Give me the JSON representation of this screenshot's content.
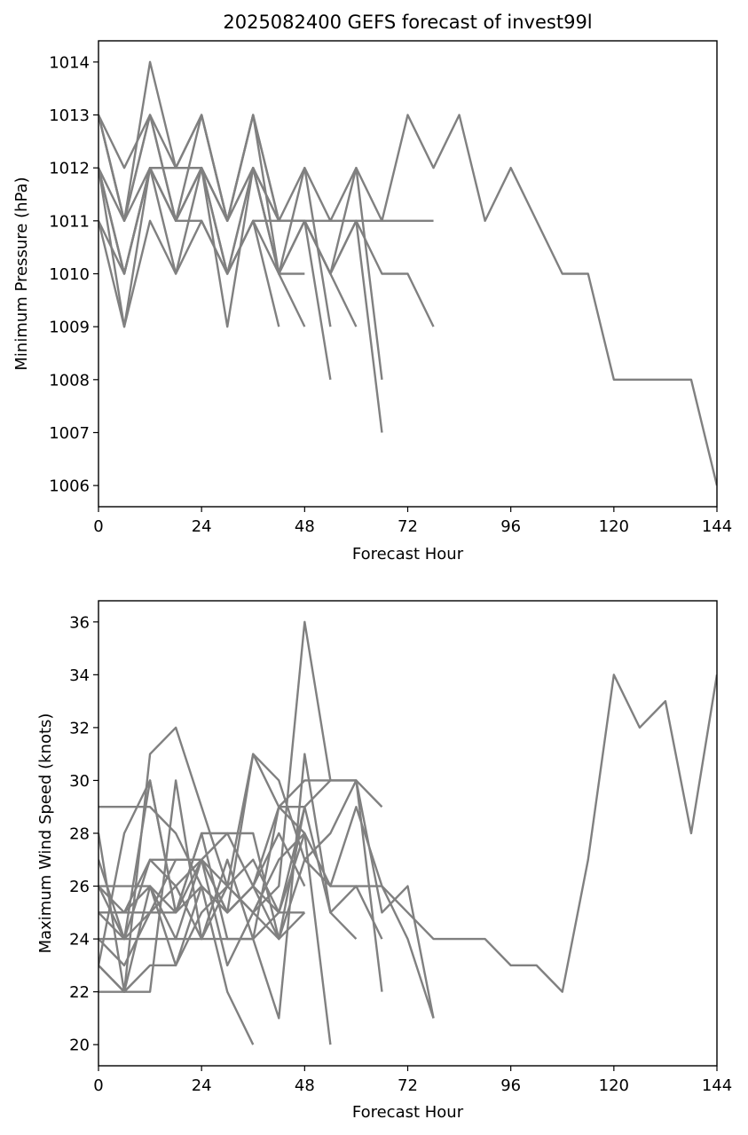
{
  "title": "2025082400 GEFS forecast of invest99l",
  "chart_data": [
    {
      "type": "line",
      "name": "pressure",
      "title": "2025082400 GEFS forecast of invest99l",
      "xlabel": "Forecast Hour",
      "ylabel": "Minimum Pressure (hPa)",
      "xlim": [
        0,
        144
      ],
      "ylim": [
        1005.6,
        1014.4
      ],
      "xticks": [
        0,
        24,
        48,
        72,
        96,
        120,
        144
      ],
      "yticks": [
        1006,
        1007,
        1008,
        1009,
        1010,
        1011,
        1012,
        1013,
        1014
      ],
      "grid": false,
      "color": "#808080",
      "series": [
        {
          "x": [
            0,
            6,
            12,
            18,
            24,
            30,
            36,
            42,
            48,
            54,
            60,
            66,
            72,
            78,
            84,
            90,
            96,
            102,
            108,
            114,
            120,
            126,
            132,
            138,
            144
          ],
          "y": [
            1013,
            1012,
            1013,
            1012,
            1013,
            1011,
            1013,
            1011,
            1012,
            1011,
            1012,
            1011,
            1013,
            1012,
            1013,
            1011,
            1012,
            1011,
            1010,
            1010,
            1008,
            1008,
            1008,
            1008,
            1006
          ]
        },
        {
          "x": [
            0,
            6,
            12,
            18,
            24,
            30,
            36,
            42,
            48,
            54,
            60,
            66,
            72,
            78
          ],
          "y": [
            1012,
            1011,
            1013,
            1011,
            1012,
            1011,
            1012,
            1011,
            1011,
            1011,
            1011,
            1011,
            1011,
            1011
          ]
        },
        {
          "x": [
            0,
            6,
            12,
            18,
            24,
            30,
            36,
            42,
            48,
            54,
            60,
            66,
            72,
            78
          ],
          "y": [
            1011,
            1010,
            1012,
            1011,
            1012,
            1010,
            1012,
            1011,
            1011,
            1010,
            1011,
            1010,
            1010,
            1009
          ]
        },
        {
          "x": [
            0,
            6,
            12,
            18,
            24,
            30,
            36,
            42,
            48,
            54,
            60,
            66
          ],
          "y": [
            1013,
            1011,
            1014,
            1012,
            1013,
            1011,
            1013,
            1011,
            1011,
            1010,
            1012,
            1008
          ]
        },
        {
          "x": [
            0,
            6,
            12,
            18,
            24,
            30,
            36,
            42,
            48,
            54,
            60,
            66
          ],
          "y": [
            1012,
            1010,
            1012,
            1010,
            1012,
            1010,
            1012,
            1010,
            1011,
            1010,
            1011,
            1007
          ]
        },
        {
          "x": [
            0,
            6,
            12,
            18,
            24,
            30,
            36,
            42,
            48,
            54
          ],
          "y": [
            1013,
            1011,
            1013,
            1011,
            1013,
            1011,
            1012,
            1010,
            1012,
            1009
          ]
        },
        {
          "x": [
            0,
            6,
            12,
            18,
            24,
            30,
            36,
            42,
            48,
            54
          ],
          "y": [
            1012,
            1009,
            1011,
            1010,
            1011,
            1010,
            1011,
            1010,
            1011,
            1008
          ]
        },
        {
          "x": [
            0,
            6,
            12,
            18,
            24,
            30,
            36,
            42,
            48,
            54,
            60
          ],
          "y": [
            1012,
            1010,
            1012,
            1011,
            1012,
            1010,
            1011,
            1011,
            1011,
            1010,
            1009
          ]
        },
        {
          "x": [
            0,
            6,
            12,
            18,
            24,
            30,
            36,
            42,
            48
          ],
          "y": [
            1011,
            1009,
            1012,
            1012,
            1012,
            1009,
            1012,
            1010,
            1009
          ]
        },
        {
          "x": [
            0,
            6,
            12,
            18,
            24,
            30,
            36,
            42
          ],
          "y": [
            1012,
            1010,
            1012,
            1011,
            1011,
            1010,
            1011,
            1009
          ]
        },
        {
          "x": [
            0,
            6,
            12,
            18,
            24,
            30,
            36,
            42,
            48
          ],
          "y": [
            1013,
            1011,
            1012,
            1012,
            1012,
            1011,
            1013,
            1010,
            1010
          ]
        }
      ]
    },
    {
      "type": "line",
      "name": "wind",
      "title": "",
      "xlabel": "Forecast Hour",
      "ylabel": "Maximum Wind Speed (knots)",
      "xlim": [
        0,
        144
      ],
      "ylim": [
        19.2,
        36.8
      ],
      "xticks": [
        0,
        24,
        48,
        72,
        96,
        120,
        144
      ],
      "yticks": [
        20,
        22,
        24,
        26,
        28,
        30,
        32,
        34,
        36
      ],
      "grid": false,
      "color": "#808080",
      "series": [
        {
          "x": [
            0,
            6,
            12,
            18,
            24,
            30,
            36,
            42,
            48,
            54,
            60,
            66,
            72,
            78,
            84,
            90,
            96,
            102,
            108,
            114,
            120,
            126,
            132,
            138,
            144
          ],
          "y": [
            25,
            24,
            25,
            25,
            26,
            25,
            26,
            25,
            28,
            26,
            29,
            26,
            25,
            24,
            24,
            24,
            23,
            23,
            22,
            27,
            34,
            32,
            33,
            28,
            34
          ]
        },
        {
          "x": [
            0,
            6,
            12,
            18,
            24,
            30,
            36,
            42,
            48,
            54,
            60,
            66,
            72,
            78
          ],
          "y": [
            26,
            25,
            26,
            24,
            27,
            26,
            27,
            25,
            29,
            30,
            30,
            25,
            26,
            21
          ]
        },
        {
          "x": [
            0,
            6,
            12,
            18,
            24,
            30,
            36,
            42,
            48,
            54,
            60,
            66,
            72,
            78
          ],
          "y": [
            24,
            23,
            25,
            27,
            27,
            25,
            26,
            24,
            27,
            26,
            26,
            26,
            24,
            21
          ]
        },
        {
          "x": [
            0,
            6,
            12,
            18,
            24,
            30,
            36,
            42,
            48,
            54,
            60,
            66
          ],
          "y": [
            29,
            29,
            29,
            28,
            26,
            25,
            31,
            30,
            27,
            28,
            30,
            29
          ]
        },
        {
          "x": [
            0,
            6,
            12,
            18,
            24,
            30,
            36,
            42,
            48,
            54,
            60,
            66
          ],
          "y": [
            28,
            22,
            31,
            32,
            29,
            26,
            31,
            29,
            30,
            30,
            30,
            22
          ]
        },
        {
          "x": [
            0,
            6,
            12,
            18,
            24,
            30,
            36,
            42,
            48,
            54,
            60,
            66
          ],
          "y": [
            27,
            24,
            30,
            25,
            28,
            24,
            24,
            21,
            31,
            25,
            26,
            24
          ]
        },
        {
          "x": [
            0,
            6,
            12,
            18,
            24,
            30,
            36,
            42,
            48,
            54
          ],
          "y": [
            22,
            22,
            22,
            30,
            24,
            26,
            25,
            26,
            36,
            30
          ]
        },
        {
          "x": [
            0,
            6,
            12,
            18,
            24,
            30,
            36,
            42,
            48,
            54
          ],
          "y": [
            23,
            28,
            30,
            25,
            27,
            23,
            25,
            27,
            28,
            20
          ]
        },
        {
          "x": [
            0,
            6,
            12,
            18,
            24,
            30,
            36,
            42,
            48,
            54,
            60
          ],
          "y": [
            25,
            25,
            27,
            27,
            27,
            28,
            26,
            29,
            29,
            25,
            24
          ]
        },
        {
          "x": [
            0,
            6,
            12,
            18,
            24,
            30,
            36
          ],
          "y": [
            23,
            22,
            23,
            23,
            26,
            22,
            20
          ]
        },
        {
          "x": [
            0,
            6,
            12,
            18,
            24,
            30,
            36,
            42,
            48
          ],
          "y": [
            26,
            26,
            26,
            25,
            28,
            28,
            28,
            24,
            25
          ]
        },
        {
          "x": [
            0,
            6,
            12,
            18,
            24,
            30,
            36,
            42,
            48
          ],
          "y": [
            24,
            24,
            24,
            24,
            24,
            24,
            24,
            25,
            25
          ]
        },
        {
          "x": [
            0,
            6,
            12,
            18,
            24,
            30,
            36,
            42,
            48
          ],
          "y": [
            25,
            25,
            25,
            26,
            24,
            27,
            24,
            29,
            28
          ]
        },
        {
          "x": [
            0,
            6,
            12,
            18,
            24,
            30,
            36,
            42,
            48
          ],
          "y": [
            23,
            22,
            26,
            23,
            25,
            26,
            25,
            24,
            29
          ]
        },
        {
          "x": [
            0,
            6,
            12,
            18,
            24,
            30,
            36,
            42,
            48
          ],
          "y": [
            26,
            24,
            27,
            26,
            27,
            25,
            26,
            28,
            26
          ]
        }
      ]
    }
  ]
}
